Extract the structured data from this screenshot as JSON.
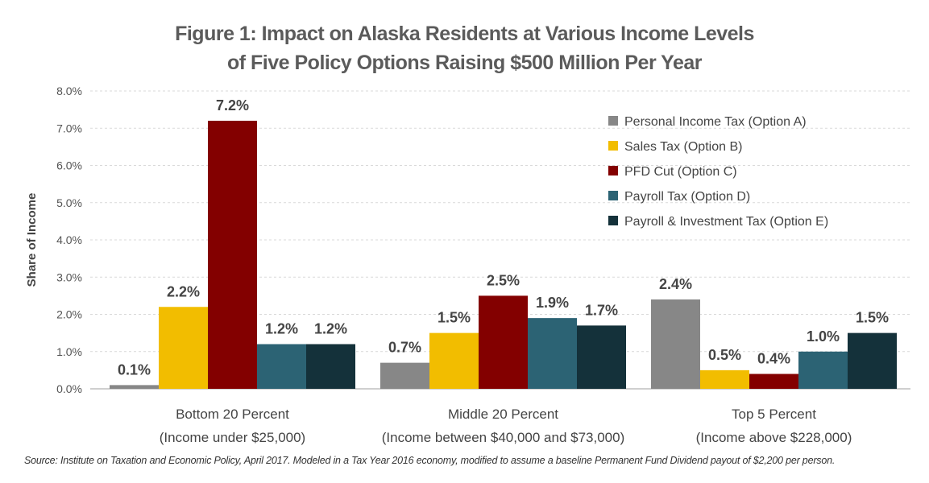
{
  "chart_data": {
    "type": "bar",
    "title_line1": "Figure 1: Impact on Alaska Residents at Various Income Levels",
    "title_line2": "of Five Policy Options Raising $500 Million Per Year",
    "ylabel": "Share of Income",
    "xlabel": "",
    "ylim": [
      0,
      8
    ],
    "yticks": [
      "0.0%",
      "1.0%",
      "2.0%",
      "3.0%",
      "4.0%",
      "5.0%",
      "6.0%",
      "7.0%",
      "8.0%"
    ],
    "grid": true,
    "legend_position": "top-right",
    "categories": [
      {
        "line1": "Bottom 20 Percent",
        "line2": "(Income under $25,000)"
      },
      {
        "line1": "Middle 20 Percent",
        "line2": "(Income between $40,000 and $73,000)"
      },
      {
        "line1": "Top 5 Percent",
        "line2": "(Income above $228,000)"
      }
    ],
    "series": [
      {
        "name": "Personal Income Tax (Option A)",
        "color": "#878787",
        "values": [
          0.1,
          0.7,
          2.4
        ],
        "labels": [
          "0.1%",
          "0.7%",
          "2.4%"
        ]
      },
      {
        "name": "Sales Tax (Option B)",
        "color": "#f2bd00",
        "values": [
          2.2,
          1.5,
          0.5
        ],
        "labels": [
          "2.2%",
          "1.5%",
          "0.5%"
        ]
      },
      {
        "name": "PFD Cut (Option C)",
        "color": "#830000",
        "values": [
          7.2,
          2.5,
          0.4
        ],
        "labels": [
          "7.2%",
          "2.5%",
          "0.4%"
        ]
      },
      {
        "name": "Payroll Tax (Option D)",
        "color": "#2c6374",
        "values": [
          1.2,
          1.9,
          1.0
        ],
        "labels": [
          "1.2%",
          "1.9%",
          "1.0%"
        ]
      },
      {
        "name": "Payroll & Investment Tax (Option E)",
        "color": "#14313a",
        "values": [
          1.2,
          1.7,
          1.5
        ],
        "labels": [
          "1.2%",
          "1.7%",
          "1.5%"
        ]
      }
    ]
  },
  "source_note": "Source: Institute on Taxation and Economic Policy, April 2017.  Modeled in a Tax Year 2016 economy, modified to assume a baseline Permanent Fund Dividend payout of $2,200 per person."
}
